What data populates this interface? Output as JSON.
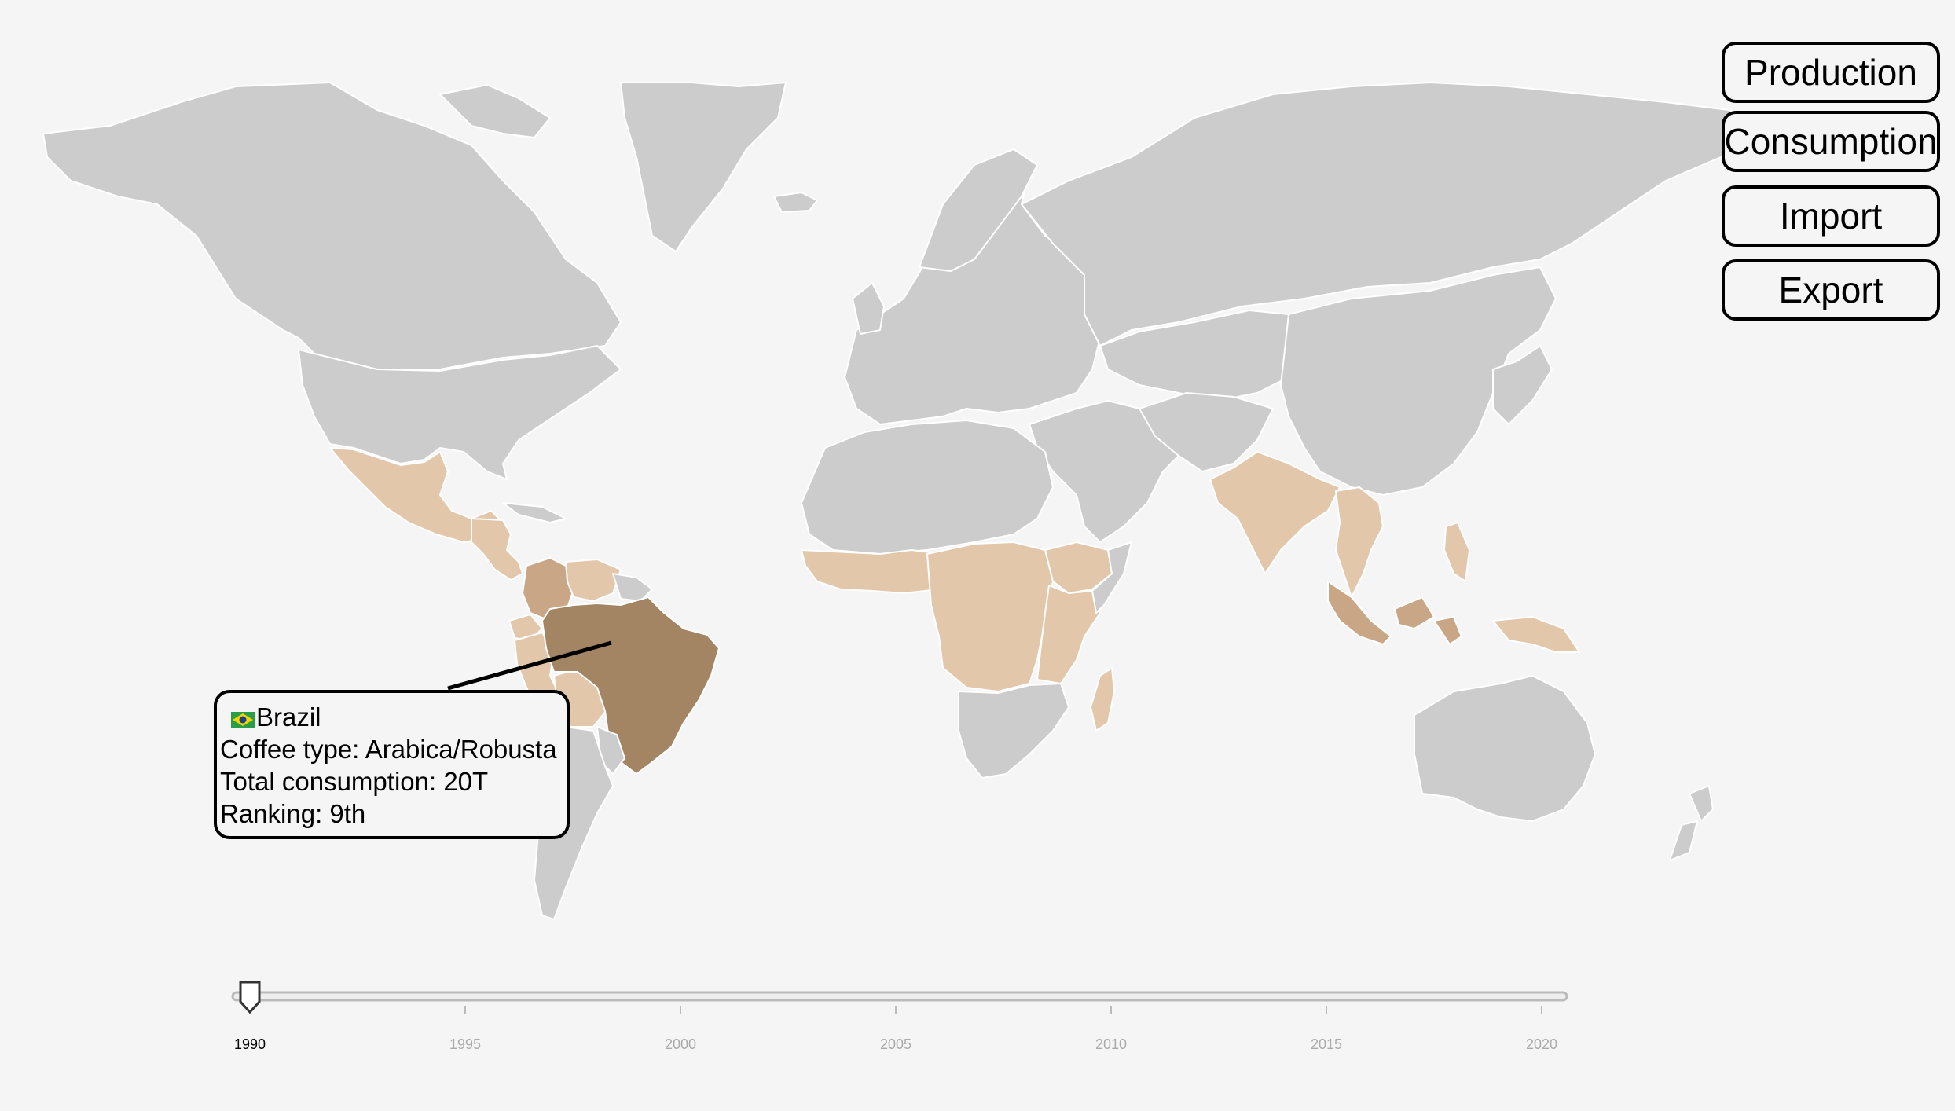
{
  "view_buttons": [
    {
      "id": "production",
      "label": "Production"
    },
    {
      "id": "consumption",
      "label": "Consumption"
    },
    {
      "id": "import",
      "label": "Import"
    },
    {
      "id": "export",
      "label": "Export"
    }
  ],
  "tooltip": {
    "country": "Brazil",
    "flag_icon": "brazil-flag-icon",
    "coffee_type": "Coffee type: Arabica/Robusta",
    "total": "Total consumption: 20T",
    "ranking": "Ranking: 9th"
  },
  "timeline": {
    "min": 1990,
    "max": 2020,
    "selected": 1990,
    "ticks": [
      "1990",
      "1995",
      "2000",
      "2005",
      "2010",
      "2015",
      "2020"
    ]
  },
  "colors": {
    "background": "#f5f5f5",
    "no_data": "#cccccc",
    "low": "#e3c7ab",
    "medium": "#c9a786",
    "high": "#a38463",
    "selected_tick_label": "#000000",
    "tick_label": "#aaaaaa"
  },
  "legend_classes": {
    "Brazil": "high",
    "Colombia": "medium",
    "Indonesia": "medium",
    "Mexico": "low",
    "Central America": "low",
    "Venezuela": "low",
    "Peru": "low",
    "Bolivia": "low",
    "Ecuador": "low",
    "West Africa": "low",
    "Central Africa": "low",
    "East Africa": "low",
    "Ethiopia": "low",
    "Madagascar": "low",
    "India": "low",
    "Mainland Southeast Asia": "low",
    "Philippines": "low",
    "Papua New Guinea": "low"
  }
}
